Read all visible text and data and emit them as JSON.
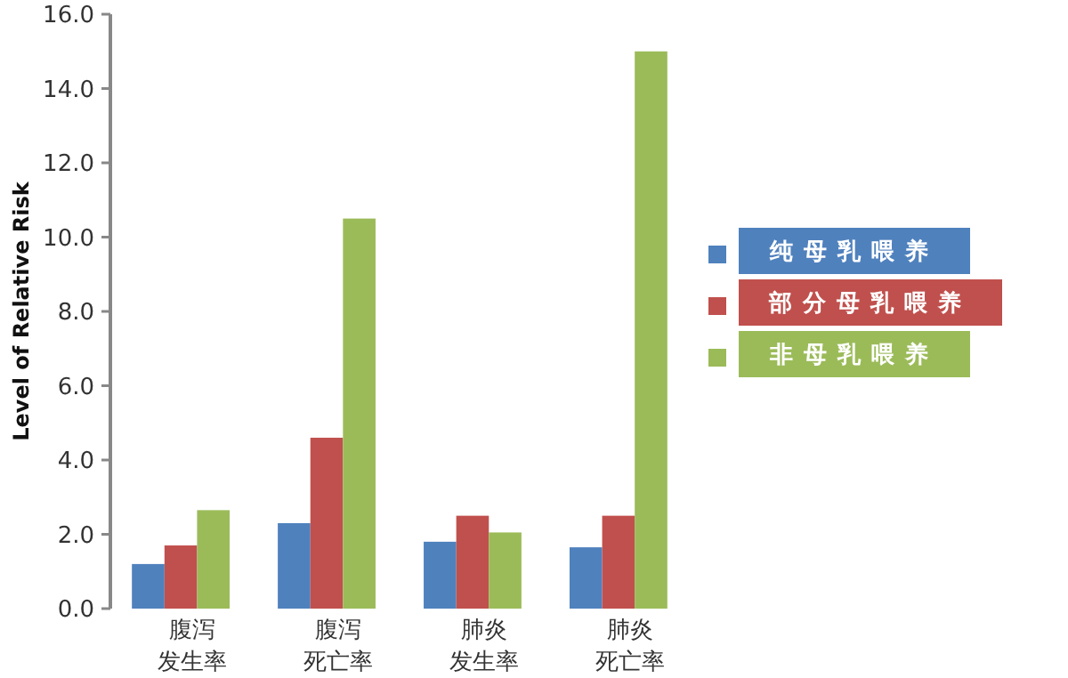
{
  "chart_data": {
    "type": "bar",
    "ylabel": "Level of Relative Risk",
    "categories": [
      "腹泻发生率",
      "腹泻死亡率",
      "肺炎发生率",
      "肺炎死亡率"
    ],
    "series": [
      {
        "name": "纯母乳喂养",
        "color": "#4f81bd",
        "values": [
          1.2,
          2.3,
          1.8,
          1.65
        ]
      },
      {
        "name": "部分母乳喂养",
        "color": "#c0504d",
        "values": [
          1.7,
          4.6,
          2.5,
          2.5
        ]
      },
      {
        "name": "非母乳喂养",
        "color": "#9bbb59",
        "values": [
          2.65,
          10.5,
          2.05,
          15.0
        ]
      }
    ],
    "ylim": [
      0,
      16
    ],
    "yticks": [
      {
        "value": 0,
        "label": "0.0"
      },
      {
        "value": 2,
        "label": "2.0"
      },
      {
        "value": 4,
        "label": "4.0"
      },
      {
        "value": 6,
        "label": "6.0"
      },
      {
        "value": 8,
        "label": "8.0"
      },
      {
        "value": 10,
        "label": "10.0"
      },
      {
        "value": 12,
        "label": "12.0"
      },
      {
        "value": 14,
        "label": "14.0"
      },
      {
        "value": 16,
        "label": "16.0"
      }
    ],
    "grid": false,
    "legend": "right"
  }
}
